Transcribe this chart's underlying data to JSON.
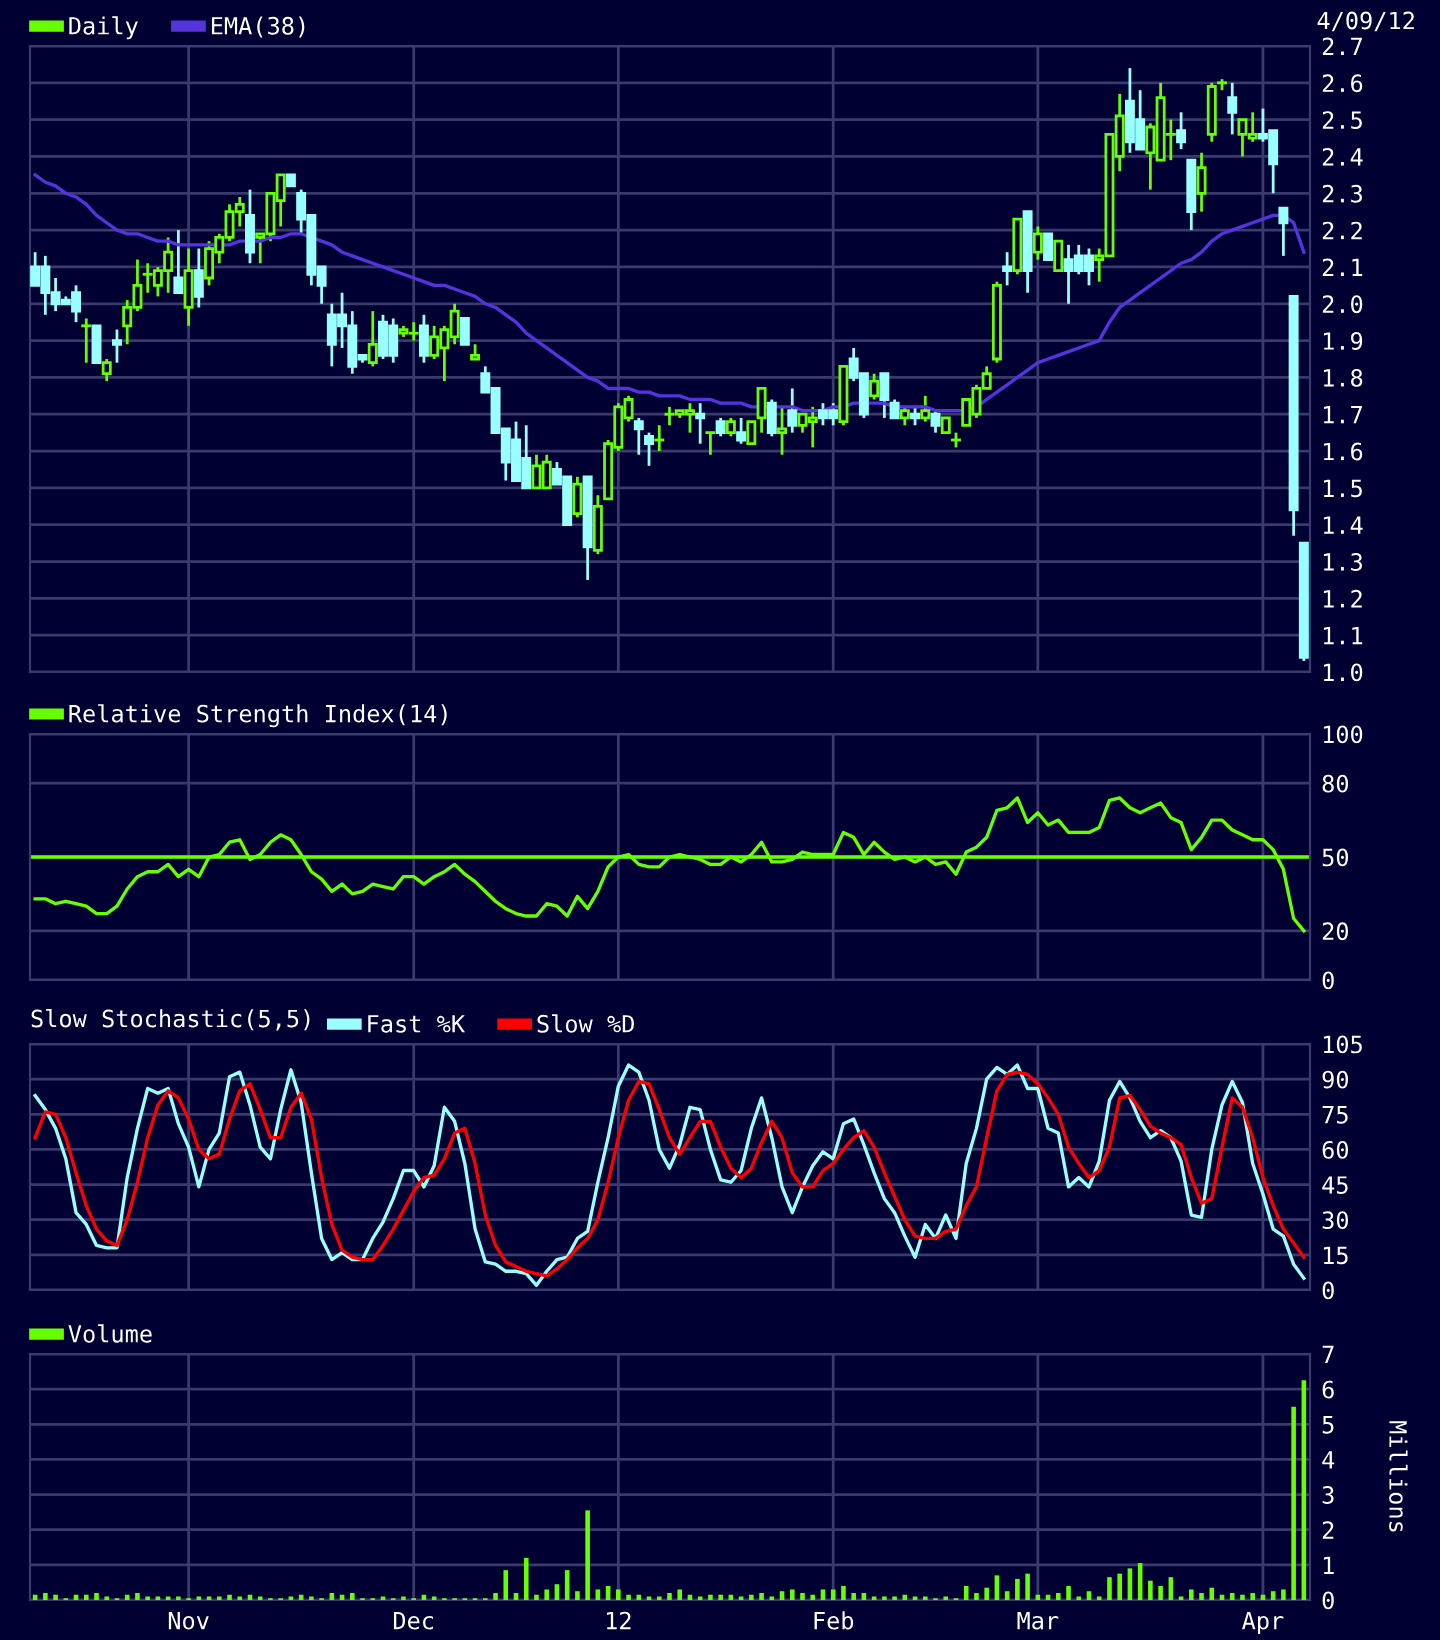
{
  "chart_data": [
    {
      "type": "candlestick",
      "legend": "top left",
      "grid": true,
      "tick_labels": "y",
      "annotations": [
        "4/09/12"
      ],
      "categories": [
        null,
        null,
        null,
        null,
        null,
        null,
        null,
        null,
        null,
        null,
        null,
        null,
        null,
        null,
        null,
        null,
        null,
        null,
        null,
        null,
        null,
        null,
        null,
        null,
        null,
        null,
        null,
        null,
        null,
        null,
        null,
        null,
        null,
        null,
        null,
        null,
        null,
        null,
        null,
        null,
        null,
        null,
        null,
        null,
        null,
        null,
        null,
        null,
        null,
        null,
        null,
        null,
        null,
        null,
        null,
        null,
        null,
        null,
        null,
        null,
        null,
        null,
        null,
        null,
        null,
        null,
        null,
        null,
        null,
        null,
        null,
        null,
        null,
        null,
        null,
        null,
        null,
        null,
        null,
        null,
        null,
        null,
        null,
        null,
        null,
        null,
        null,
        null,
        null,
        null,
        null,
        null,
        null,
        null,
        null,
        null,
        null,
        null,
        null,
        null,
        null,
        null,
        null,
        null,
        null,
        null,
        null,
        null,
        null,
        null,
        null,
        null,
        null,
        null,
        null,
        null,
        null,
        null,
        null,
        null,
        null,
        null,
        null,
        null,
        null
      ],
      "ylim": [
        1.0,
        2.7
      ],
      "yticks": [
        {
          "value": 1.0,
          "label": "1.0"
        },
        1.1,
        1.2,
        1.3,
        1.4,
        1.5,
        1.6,
        1.7,
        1.8,
        1.9,
        {
          "value": 2.0,
          "label": "2.0"
        },
        2.1,
        2.2,
        2.3,
        2.4,
        2.5,
        2.6,
        2.7
      ],
      "series": [
        {
          "name": "Daily",
          "type": "candlestick",
          "color": "#66ff00",
          "colors": [
            "#99ffff",
            "#99ffff",
            "#99ffff",
            "#99ffff",
            "#99ffff",
            "#66ff00",
            "#99ffff",
            "#66ff00",
            "#99ffff",
            "#66ff00",
            "#66ff00",
            "#66ff00",
            "#66ff00",
            "#66ff00",
            "#99ffff",
            "#66ff00",
            "#99ffff",
            "#66ff00",
            "#66ff00",
            "#66ff00",
            "#66ff00",
            "#99ffff",
            "#66ff00",
            "#66ff00",
            "#66ff00",
            "#99ffff",
            "#99ffff",
            "#99ffff",
            "#99ffff",
            "#99ffff",
            "#99ffff",
            "#99ffff",
            "#99ffff",
            "#66ff00",
            "#99ffff",
            "#99ffff",
            "#66ff00",
            "#66ff00",
            "#99ffff",
            "#66ff00",
            "#66ff00",
            "#66ff00",
            "#99ffff",
            "#66ff00",
            "#99ffff",
            "#99ffff",
            "#99ffff",
            "#99ffff",
            "#99ffff",
            "#66ff00",
            "#66ff00",
            "#99ffff",
            "#99ffff",
            "#66ff00",
            "#99ffff",
            "#66ff00",
            "#66ff00",
            "#66ff00",
            "#66ff00",
            "#99ffff",
            "#99ffff",
            "#66ff00",
            "#66ff00",
            "#66ff00",
            "#66ff00",
            "#99ffff",
            "#66ff00",
            "#99ffff",
            "#66ff00",
            "#99ffff",
            "#66ff00",
            "#66ff00",
            "#99ffff",
            "#66ff00",
            "#99ffff",
            "#66ff00",
            "#66ff00",
            "#99ffff",
            "#99ffff",
            "#66ff00",
            "#99ffff",
            "#99ffff",
            "#66ff00",
            "#99ffff",
            "#99ffff",
            "#66ff00",
            "#99ffff",
            "#66ff00",
            "#99ffff",
            "#66ff00",
            "#66ff00",
            "#66ff00",
            "#66ff00",
            "#66ff00",
            "#66ff00",
            "#99ffff",
            "#66ff00",
            "#99ffff",
            "#66ff00",
            "#99ffff",
            "#66ff00",
            "#99ffff",
            "#99ffff",
            "#99ffff",
            "#66ff00",
            "#66ff00",
            "#66ff00",
            "#99ffff",
            "#99ffff",
            "#66ff00",
            "#66ff00",
            "#66ff00",
            "#99ffff",
            "#99ffff",
            "#66ff00",
            "#66ff00",
            "#66ff00",
            "#99ffff",
            "#66ff00",
            "#66ff00",
            "#99ffff",
            "#99ffff",
            "#99ffff",
            "#99ffff",
            "#99ffff"
          ],
          "ohlc": [
            [
              2.1,
              2.14,
              2.05,
              2.05
            ],
            [
              2.1,
              2.13,
              1.97,
              2.03
            ],
            [
              2.03,
              2.07,
              1.98,
              2.0
            ],
            [
              2.01,
              2.02,
              2.0,
              2.0
            ],
            [
              2.03,
              2.05,
              1.95,
              1.98
            ],
            [
              1.94,
              1.96,
              1.84,
              1.94
            ],
            [
              1.94,
              1.94,
              1.84,
              1.84
            ],
            [
              1.81,
              1.85,
              1.79,
              1.84
            ],
            [
              1.9,
              1.93,
              1.84,
              1.89
            ],
            [
              1.94,
              2.01,
              1.89,
              1.99
            ],
            [
              1.99,
              2.12,
              1.98,
              2.05
            ],
            [
              2.08,
              2.11,
              2.03,
              2.08
            ],
            [
              2.05,
              2.1,
              2.02,
              2.09
            ],
            [
              2.09,
              2.18,
              2.03,
              2.14
            ],
            [
              2.07,
              2.2,
              2.03,
              2.03
            ],
            [
              1.99,
              2.15,
              1.94,
              2.09
            ],
            [
              2.09,
              2.15,
              1.99,
              2.02
            ],
            [
              2.07,
              2.17,
              2.05,
              2.15
            ],
            [
              2.14,
              2.19,
              2.11,
              2.18
            ],
            [
              2.18,
              2.27,
              2.17,
              2.25
            ],
            [
              2.25,
              2.29,
              2.21,
              2.27
            ],
            [
              2.24,
              2.31,
              2.11,
              2.14
            ],
            [
              2.18,
              2.19,
              2.11,
              2.19
            ],
            [
              2.19,
              2.3,
              2.17,
              2.3
            ],
            [
              2.28,
              2.35,
              2.21,
              2.35
            ],
            [
              2.35,
              2.35,
              2.32,
              2.32
            ],
            [
              2.3,
              2.31,
              2.19,
              2.23
            ],
            [
              2.24,
              2.24,
              2.05,
              2.08
            ],
            [
              2.1,
              2.1,
              2.0,
              2.05
            ],
            [
              1.97,
              2.0,
              1.83,
              1.89
            ],
            [
              1.97,
              2.03,
              1.88,
              1.94
            ],
            [
              1.94,
              1.98,
              1.81,
              1.83
            ],
            [
              1.86,
              1.86,
              1.84,
              1.85
            ],
            [
              1.84,
              1.98,
              1.83,
              1.89
            ],
            [
              1.95,
              1.97,
              1.85,
              1.86
            ],
            [
              1.94,
              1.96,
              1.84,
              1.86
            ],
            [
              1.92,
              1.94,
              1.91,
              1.93
            ],
            [
              1.92,
              1.95,
              1.9,
              1.92
            ],
            [
              1.94,
              1.97,
              1.84,
              1.86
            ],
            [
              1.86,
              1.94,
              1.85,
              1.91
            ],
            [
              1.88,
              1.94,
              1.79,
              1.93
            ],
            [
              1.91,
              2.0,
              1.89,
              1.98
            ],
            [
              1.96,
              1.96,
              1.89,
              1.89
            ],
            [
              1.85,
              1.89,
              1.85,
              1.86
            ],
            [
              1.81,
              1.83,
              1.76,
              1.76
            ],
            [
              1.77,
              1.77,
              1.65,
              1.65
            ],
            [
              1.66,
              1.66,
              1.52,
              1.57
            ],
            [
              1.63,
              1.68,
              1.52,
              1.52
            ],
            [
              1.58,
              1.67,
              1.5,
              1.5
            ],
            [
              1.5,
              1.59,
              1.5,
              1.56
            ],
            [
              1.5,
              1.59,
              1.5,
              1.57
            ],
            [
              1.55,
              1.57,
              1.51,
              1.51
            ],
            [
              1.53,
              1.53,
              1.4,
              1.4
            ],
            [
              1.43,
              1.53,
              1.42,
              1.51
            ],
            [
              1.53,
              1.53,
              1.25,
              1.34
            ],
            [
              1.33,
              1.48,
              1.32,
              1.45
            ],
            [
              1.47,
              1.63,
              1.47,
              1.62
            ],
            [
              1.61,
              1.73,
              1.6,
              1.72
            ],
            [
              1.69,
              1.75,
              1.68,
              1.74
            ],
            [
              1.68,
              1.69,
              1.59,
              1.66
            ],
            [
              1.64,
              1.65,
              1.56,
              1.62
            ],
            [
              1.63,
              1.67,
              1.6,
              1.63
            ],
            [
              1.7,
              1.72,
              1.67,
              1.7
            ],
            [
              1.7,
              1.71,
              1.69,
              1.71
            ],
            [
              1.7,
              1.73,
              1.65,
              1.71
            ],
            [
              1.7,
              1.73,
              1.62,
              1.69
            ],
            [
              1.65,
              1.65,
              1.59,
              1.65
            ],
            [
              1.68,
              1.69,
              1.64,
              1.65
            ],
            [
              1.65,
              1.69,
              1.64,
              1.68
            ],
            [
              1.65,
              1.69,
              1.62,
              1.63
            ],
            [
              1.62,
              1.68,
              1.62,
              1.68
            ],
            [
              1.69,
              1.77,
              1.65,
              1.77
            ],
            [
              1.73,
              1.74,
              1.64,
              1.65
            ],
            [
              1.65,
              1.72,
              1.59,
              1.66
            ],
            [
              1.71,
              1.77,
              1.65,
              1.67
            ],
            [
              1.67,
              1.7,
              1.65,
              1.7
            ],
            [
              1.68,
              1.72,
              1.61,
              1.69
            ],
            [
              1.71,
              1.73,
              1.67,
              1.69
            ],
            [
              1.71,
              1.73,
              1.67,
              1.69
            ],
            [
              1.68,
              1.83,
              1.67,
              1.83
            ],
            [
              1.85,
              1.88,
              1.79,
              1.8
            ],
            [
              1.81,
              1.81,
              1.69,
              1.7
            ],
            [
              1.75,
              1.81,
              1.74,
              1.79
            ],
            [
              1.81,
              1.81,
              1.69,
              1.74
            ],
            [
              1.73,
              1.74,
              1.69,
              1.69
            ],
            [
              1.69,
              1.72,
              1.67,
              1.71
            ],
            [
              1.7,
              1.72,
              1.67,
              1.69
            ],
            [
              1.69,
              1.75,
              1.68,
              1.71
            ],
            [
              1.7,
              1.71,
              1.65,
              1.67
            ],
            [
              1.65,
              1.69,
              1.65,
              1.69
            ],
            [
              1.63,
              1.65,
              1.61,
              1.63
            ],
            [
              1.67,
              1.74,
              1.67,
              1.74
            ],
            [
              1.7,
              1.78,
              1.69,
              1.77
            ],
            [
              1.77,
              1.83,
              1.77,
              1.81
            ],
            [
              1.85,
              2.06,
              1.84,
              2.05
            ],
            [
              2.1,
              2.14,
              2.05,
              2.09
            ],
            [
              2.09,
              2.23,
              2.08,
              2.23
            ],
            [
              2.25,
              2.25,
              2.03,
              2.09
            ],
            [
              2.14,
              2.21,
              2.12,
              2.19
            ],
            [
              2.19,
              2.19,
              2.12,
              2.12
            ],
            [
              2.09,
              2.17,
              2.09,
              2.17
            ],
            [
              2.12,
              2.16,
              2.0,
              2.09
            ],
            [
              2.13,
              2.16,
              2.08,
              2.09
            ],
            [
              2.13,
              2.15,
              2.05,
              2.09
            ],
            [
              2.12,
              2.15,
              2.06,
              2.13
            ],
            [
              2.13,
              2.46,
              2.13,
              2.46
            ],
            [
              2.4,
              2.57,
              2.36,
              2.51
            ],
            [
              2.55,
              2.64,
              2.41,
              2.44
            ],
            [
              2.5,
              2.58,
              2.42,
              2.42
            ],
            [
              2.41,
              2.49,
              2.31,
              2.48
            ],
            [
              2.39,
              2.6,
              2.39,
              2.56
            ],
            [
              2.46,
              2.5,
              2.39,
              2.46
            ],
            [
              2.47,
              2.52,
              2.42,
              2.44
            ],
            [
              2.39,
              2.39,
              2.2,
              2.25
            ],
            [
              2.3,
              2.41,
              2.25,
              2.37
            ],
            [
              2.46,
              2.6,
              2.44,
              2.59
            ],
            [
              2.6,
              2.61,
              2.58,
              2.6
            ],
            [
              2.56,
              2.6,
              2.46,
              2.52
            ],
            [
              2.46,
              2.5,
              2.4,
              2.5
            ],
            [
              2.45,
              2.52,
              2.44,
              2.46
            ],
            [
              2.46,
              2.53,
              2.44,
              2.45
            ],
            [
              2.47,
              2.47,
              2.3,
              2.38
            ],
            [
              2.26,
              2.26,
              2.13,
              2.22
            ],
            [
              2.02,
              2.02,
              1.37,
              1.44
            ],
            [
              1.35,
              1.35,
              1.03,
              1.04
            ]
          ]
        },
        {
          "name": "EMA(38)",
          "type": "line",
          "color": "#5533dd",
          "values": [
            2.35,
            2.33,
            2.32,
            2.3,
            2.29,
            2.27,
            2.24,
            2.22,
            2.2,
            2.19,
            2.19,
            2.18,
            2.17,
            2.17,
            2.16,
            2.16,
            2.16,
            2.16,
            2.16,
            2.16,
            2.17,
            2.17,
            2.17,
            2.18,
            2.18,
            2.19,
            2.19,
            2.18,
            2.17,
            2.16,
            2.14,
            2.13,
            2.12,
            2.11,
            2.1,
            2.09,
            2.08,
            2.07,
            2.06,
            2.05,
            2.05,
            2.04,
            2.03,
            2.02,
            2.0,
            1.99,
            1.97,
            1.95,
            1.92,
            1.9,
            1.88,
            1.86,
            1.84,
            1.82,
            1.8,
            1.79,
            1.77,
            1.77,
            1.77,
            1.76,
            1.76,
            1.75,
            1.75,
            1.75,
            1.74,
            1.74,
            1.74,
            1.73,
            1.73,
            1.73,
            1.72,
            1.72,
            1.72,
            1.72,
            1.72,
            1.71,
            1.71,
            1.71,
            1.72,
            1.72,
            1.73,
            1.73,
            1.73,
            1.73,
            1.72,
            1.72,
            1.72,
            1.72,
            1.71,
            1.71,
            1.71,
            1.71,
            1.72,
            1.74,
            1.76,
            1.78,
            1.8,
            1.82,
            1.84,
            1.85,
            1.86,
            1.87,
            1.88,
            1.89,
            1.9,
            1.95,
            1.99,
            2.01,
            2.03,
            2.05,
            2.07,
            2.09,
            2.11,
            2.12,
            2.14,
            2.17,
            2.19,
            2.2,
            2.21,
            2.22,
            2.23,
            2.24,
            2.24,
            2.22,
            2.14
          ]
        }
      ]
    },
    {
      "type": "line",
      "legend": "top left",
      "grid": true,
      "tick_labels": "y",
      "categories": [
        null,
        null,
        null,
        null,
        null,
        null,
        null,
        null,
        null,
        null,
        null,
        null,
        null,
        null,
        null,
        null,
        null,
        null,
        null,
        null,
        null,
        null,
        null,
        null,
        null,
        null,
        null,
        null,
        null,
        null,
        null,
        null,
        null,
        null,
        null,
        null,
        null,
        null,
        null,
        null,
        null,
        null,
        null,
        null,
        null,
        null,
        null,
        null,
        null,
        null,
        null,
        null,
        null,
        null,
        null,
        null,
        null,
        null,
        null,
        null,
        null,
        null,
        null,
        null,
        null,
        null,
        null,
        null,
        null,
        null,
        null,
        null,
        null,
        null,
        null,
        null,
        null,
        null,
        null,
        null,
        null,
        null,
        null,
        null,
        null,
        null,
        null,
        null,
        null,
        null,
        null,
        null,
        null,
        null,
        null,
        null,
        null,
        null,
        null,
        null,
        null,
        null,
        null,
        null,
        null,
        null,
        null,
        null,
        null,
        null,
        null,
        null,
        null,
        null,
        null,
        null,
        null,
        null,
        null,
        null,
        null,
        null,
        null,
        null,
        null
      ],
      "ylim": [
        0,
        100
      ],
      "yticks": [
        0,
        20,
        50,
        80,
        100
      ],
      "ref_lines": [
        {
          "axis": "y",
          "value": 50,
          "color": "#66ff00"
        }
      ],
      "series": [
        {
          "name": "Relative Strength Index(14)",
          "color": "#66ff00",
          "values": [
            33,
            33,
            31,
            32,
            31,
            30,
            27,
            27,
            30,
            37,
            42,
            44,
            44,
            47,
            42,
            45,
            42,
            50,
            51,
            56,
            57,
            49,
            51,
            56,
            59,
            57,
            51,
            44,
            41,
            36,
            39,
            35,
            36,
            39,
            38,
            37,
            42,
            42,
            39,
            42,
            44,
            47,
            43,
            40,
            36,
            32,
            29,
            27,
            26,
            26,
            31,
            30,
            26,
            34,
            29,
            36,
            46,
            50,
            51,
            47,
            46,
            46,
            50,
            51,
            50,
            49,
            47,
            47,
            50,
            48,
            51,
            56,
            48,
            48,
            49,
            52,
            51,
            51,
            51,
            60,
            58,
            51,
            56,
            52,
            49,
            50,
            48,
            50,
            47,
            48,
            43,
            52,
            54,
            58,
            69,
            70,
            74,
            64,
            68,
            63,
            65,
            60,
            60,
            60,
            62,
            73,
            74,
            70,
            68,
            70,
            72,
            66,
            64,
            53,
            58,
            65,
            65,
            61,
            59,
            57,
            57,
            53,
            45,
            25,
            20
          ]
        }
      ]
    },
    {
      "type": "line",
      "title": "Slow Stochastic(5,5)",
      "legend": "top left",
      "grid": true,
      "tick_labels": "y",
      "categories": [
        null,
        null,
        null,
        null,
        null,
        null,
        null,
        null,
        null,
        null,
        null,
        null,
        null,
        null,
        null,
        null,
        null,
        null,
        null,
        null,
        null,
        null,
        null,
        null,
        null,
        null,
        null,
        null,
        null,
        null,
        null,
        null,
        null,
        null,
        null,
        null,
        null,
        null,
        null,
        null,
        null,
        null,
        null,
        null,
        null,
        null,
        null,
        null,
        null,
        null,
        null,
        null,
        null,
        null,
        null,
        null,
        null,
        null,
        null,
        null,
        null,
        null,
        null,
        null,
        null,
        null,
        null,
        null,
        null,
        null,
        null,
        null,
        null,
        null,
        null,
        null,
        null,
        null,
        null,
        null,
        null,
        null,
        null,
        null,
        null,
        null,
        null,
        null,
        null,
        null,
        null,
        null,
        null,
        null,
        null,
        null,
        null,
        null,
        null,
        null,
        null,
        null,
        null,
        null,
        null,
        null,
        null,
        null,
        null,
        null,
        null,
        null,
        null,
        null,
        null,
        null,
        null,
        null,
        null,
        null,
        null,
        null,
        null,
        null,
        null
      ],
      "ylim": [
        0,
        105
      ],
      "yticks": [
        0,
        15,
        30,
        45,
        60,
        75,
        90,
        105
      ],
      "series": [
        {
          "name": "Fast %K",
          "color": "#99ffff",
          "values": [
            83,
            77,
            69,
            56,
            33,
            28,
            19,
            18,
            18,
            48,
            69,
            86,
            84,
            86,
            71,
            61,
            44,
            60,
            67,
            91,
            93,
            79,
            61,
            56,
            77,
            94,
            80,
            50,
            22,
            13,
            16,
            13,
            13,
            22,
            29,
            39,
            51,
            51,
            44,
            53,
            78,
            72,
            54,
            26,
            12,
            11,
            8,
            8,
            7,
            2,
            8,
            13,
            14,
            22,
            25,
            46,
            65,
            87,
            96,
            93,
            81,
            60,
            52,
            62,
            78,
            77,
            60,
            47,
            46,
            51,
            69,
            82,
            65,
            44,
            33,
            44,
            53,
            59,
            56,
            71,
            73,
            62,
            50,
            39,
            33,
            23,
            14,
            28,
            22,
            32,
            22,
            54,
            69,
            90,
            95,
            92,
            96,
            86,
            86,
            69,
            67,
            44,
            48,
            44,
            55,
            81,
            89,
            82,
            72,
            65,
            68,
            65,
            55,
            32,
            31,
            60,
            79,
            89,
            80,
            54,
            41,
            26,
            23,
            11,
            5
          ]
        },
        {
          "name": "Slow %D",
          "color": "#ff0000",
          "values": [
            65,
            76,
            75,
            65,
            50,
            36,
            26,
            21,
            19,
            30,
            46,
            65,
            79,
            85,
            82,
            73,
            60,
            56,
            58,
            73,
            85,
            88,
            77,
            65,
            65,
            78,
            84,
            73,
            48,
            28,
            17,
            14,
            13,
            13,
            19,
            26,
            34,
            42,
            48,
            49,
            56,
            67,
            69,
            54,
            32,
            19,
            12,
            10,
            8,
            7,
            6,
            9,
            13,
            18,
            22,
            30,
            46,
            65,
            81,
            89,
            88,
            77,
            65,
            58,
            65,
            72,
            72,
            61,
            52,
            48,
            52,
            63,
            72,
            65,
            50,
            44,
            44,
            51,
            54,
            60,
            65,
            68,
            61,
            50,
            40,
            30,
            23,
            22,
            22,
            25,
            26,
            36,
            44,
            65,
            85,
            92,
            93,
            92,
            88,
            82,
            75,
            61,
            54,
            48,
            51,
            61,
            82,
            83,
            77,
            70,
            67,
            65,
            62,
            48,
            37,
            39,
            61,
            82,
            78,
            65,
            48,
            36,
            26,
            20,
            14
          ]
        }
      ]
    },
    {
      "type": "bar",
      "legend": "top left",
      "grid": true,
      "ylabel": "Millions",
      "categories": [
        null,
        null,
        null,
        null,
        null,
        null,
        null,
        null,
        null,
        null,
        null,
        null,
        null,
        null,
        null,
        "Nov",
        null,
        null,
        null,
        null,
        null,
        null,
        null,
        null,
        null,
        null,
        null,
        null,
        null,
        null,
        null,
        null,
        null,
        null,
        null,
        null,
        null,
        "Dec",
        null,
        null,
        null,
        null,
        null,
        null,
        null,
        null,
        null,
        null,
        null,
        null,
        null,
        null,
        null,
        null,
        null,
        null,
        null,
        "12",
        null,
        null,
        null,
        null,
        null,
        null,
        null,
        null,
        null,
        null,
        null,
        null,
        null,
        null,
        null,
        null,
        null,
        null,
        null,
        null,
        "Feb",
        null,
        null,
        null,
        null,
        null,
        null,
        null,
        null,
        null,
        null,
        null,
        null,
        null,
        null,
        null,
        null,
        null,
        null,
        null,
        "Mar",
        null,
        null,
        null,
        null,
        null,
        null,
        null,
        null,
        null,
        null,
        null,
        null,
        null,
        null,
        null,
        null,
        null,
        null,
        null,
        null,
        null,
        "Apr",
        null,
        null,
        null,
        null
      ],
      "ylim": [
        0,
        7
      ],
      "yticks": [
        0,
        1,
        2,
        3,
        4,
        5,
        6,
        7
      ],
      "series": [
        {
          "name": "Volume",
          "color": "#66ff00",
          "values": [
            0.15,
            0.2,
            0.15,
            0.05,
            0.15,
            0.15,
            0.2,
            0.1,
            0.05,
            0.15,
            0.2,
            0.1,
            0.1,
            0.1,
            0.1,
            0.05,
            0.1,
            0.1,
            0.1,
            0.15,
            0.1,
            0.15,
            0.1,
            0.05,
            0.05,
            0.1,
            0.15,
            0.1,
            0.05,
            0.2,
            0.15,
            0.2,
            0.05,
            0.05,
            0.1,
            0.05,
            0.1,
            0.05,
            0.15,
            0.1,
            0.05,
            0.05,
            0.05,
            0.05,
            0.05,
            0.2,
            0.85,
            0.2,
            1.2,
            0.15,
            0.3,
            0.45,
            0.85,
            0.25,
            2.55,
            0.3,
            0.4,
            0.3,
            0.15,
            0.15,
            0.1,
            0.1,
            0.2,
            0.3,
            0.15,
            0.1,
            0.15,
            0.15,
            0.15,
            0.1,
            0.15,
            0.2,
            0.1,
            0.25,
            0.3,
            0.2,
            0.15,
            0.3,
            0.3,
            0.4,
            0.2,
            0.2,
            0.1,
            0.1,
            0.1,
            0.15,
            0.1,
            0.1,
            0.05,
            0.1,
            0.05,
            0.4,
            0.2,
            0.35,
            0.7,
            0.25,
            0.6,
            0.75,
            0.15,
            0.15,
            0.2,
            0.4,
            0.1,
            0.25,
            0.1,
            0.65,
            0.75,
            0.9,
            1.05,
            0.55,
            0.4,
            0.65,
            0.1,
            0.3,
            0.2,
            0.35,
            0.15,
            0.2,
            0.15,
            0.2,
            0.15,
            0.25,
            0.3,
            5.5,
            6.25
          ]
        }
      ]
    }
  ]
}
